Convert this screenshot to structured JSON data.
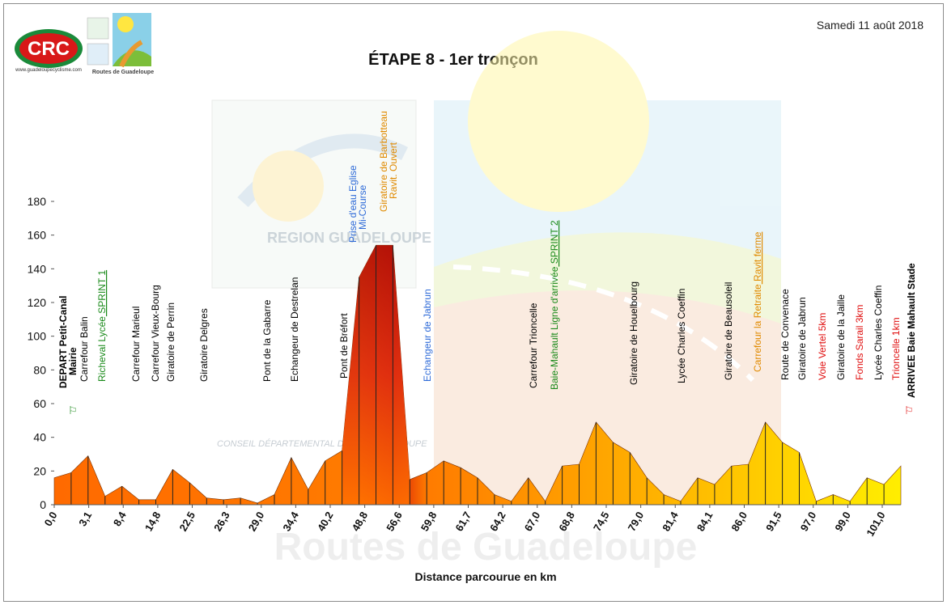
{
  "header": {
    "date": "Samedi 11 août  2018",
    "title": "ÉTAPE 8 - 1er tronçon",
    "logo_crc_caption": "www.guadeloupecyclisme.com",
    "logo_routes_caption": "Routes de Guadeloupe"
  },
  "watermarks": [
    "REGION GUADELOUPE",
    "CONSEIL DÉPARTEMENTAL DE LA GUADELOUPE",
    "Routes de Guadeloupe"
  ],
  "colors": {
    "start": "#ff6a00",
    "mid": "#e02010",
    "end": "#ffe600",
    "label_black": "#000000",
    "label_green": "#1a8a1a",
    "label_blue": "#2f6bd8",
    "label_orange": "#e08a00",
    "label_red": "#e01010"
  },
  "chart_data": {
    "type": "area",
    "xlabel": "Distance parcourue en km",
    "ylabel": "",
    "ylim": [
      0,
      180
    ],
    "yticks": [
      0,
      20,
      40,
      60,
      80,
      100,
      120,
      140,
      160,
      180
    ],
    "x_tick_labels": [
      "0,0",
      "3,1",
      "8,4",
      "14,8",
      "22,5",
      "26,3",
      "29,0",
      "34,4",
      "40,2",
      "48,8",
      "56,6",
      "59,8",
      "61,7",
      "64,2",
      "67,0",
      "68,8",
      "74,5",
      "79,0",
      "81,4",
      "84,1",
      "86,0",
      "91,5",
      "97,0",
      "99,0",
      "101,0"
    ],
    "altitudes": [
      16,
      19,
      29,
      5,
      11,
      3,
      3,
      21,
      13,
      4,
      3,
      4,
      1,
      6,
      28,
      9,
      26,
      32,
      135,
      154,
      154,
      15,
      19,
      26,
      22,
      16,
      6,
      2,
      16,
      2,
      23,
      24,
      49,
      37,
      31,
      16,
      6,
      2,
      16,
      12,
      23,
      24,
      49,
      37,
      31,
      2,
      6,
      2,
      16,
      12,
      23
    ],
    "waypoints": [
      {
        "label": "DEPART  Petit-Canal",
        "label2": "Mairie",
        "style": "bold"
      },
      {
        "label": "Carrefour Balin",
        "style": "black"
      },
      {
        "label": "Richeval Lycée",
        "label_ul": "SPRINT 1",
        "style": "green"
      },
      {
        "label": "Carrefour Marieul",
        "style": "black"
      },
      {
        "label": "Carrefour Vieux-Bourg",
        "style": "black"
      },
      {
        "label": "Giratoire de Perrin",
        "style": "black"
      },
      {
        "label": "Giratoire Delgres",
        "style": "black"
      },
      {
        "label": "Pont de la Gabarre",
        "style": "black"
      },
      {
        "label": "Echangeur  de Destrelan",
        "style": "black"
      },
      {
        "label": "Pont de Bréfort",
        "style": "black"
      },
      {
        "label": "Prise d'eau  Eglise",
        "label2": "Mi-Course",
        "style": "blue"
      },
      {
        "label": "Giratoire de Barbotteau",
        "label2": "Ravit. Ouvert",
        "style": "orange"
      },
      {
        "label": "Echangeur de Jabrun",
        "style": "blue"
      },
      {
        "label": "Carrefour Trioncelle",
        "style": "black"
      },
      {
        "label": "Baie-Mahault Ligne d'arrivée",
        "label_ul": "SPRINT 2",
        "style": "green"
      },
      {
        "label": "Giratoire de Houelbourg",
        "style": "black"
      },
      {
        "label": "Lycée Charles Coeffin",
        "style": "black"
      },
      {
        "label": "Giratoire de Beausoleil",
        "style": "black"
      },
      {
        "label": "Carrefour la Retraite",
        "label_ul": "Ravit ferme",
        "style": "orange"
      },
      {
        "label": "Route de Convenace",
        "style": "black"
      },
      {
        "label": "Giratoire de Jabrun",
        "style": "black"
      },
      {
        "label": "Voie Vertel 5km",
        "style": "red"
      },
      {
        "label": "Giratoire de la Jaille",
        "style": "black"
      },
      {
        "label": "Fonds Sarail 3km",
        "style": "red"
      },
      {
        "label": "Lycée Charles Coeffin",
        "style": "black"
      },
      {
        "label": "Trioncelle 1km",
        "style": "red"
      },
      {
        "label": "ARRIVEE  Baie Mahault Stade",
        "style": "bold"
      }
    ]
  }
}
